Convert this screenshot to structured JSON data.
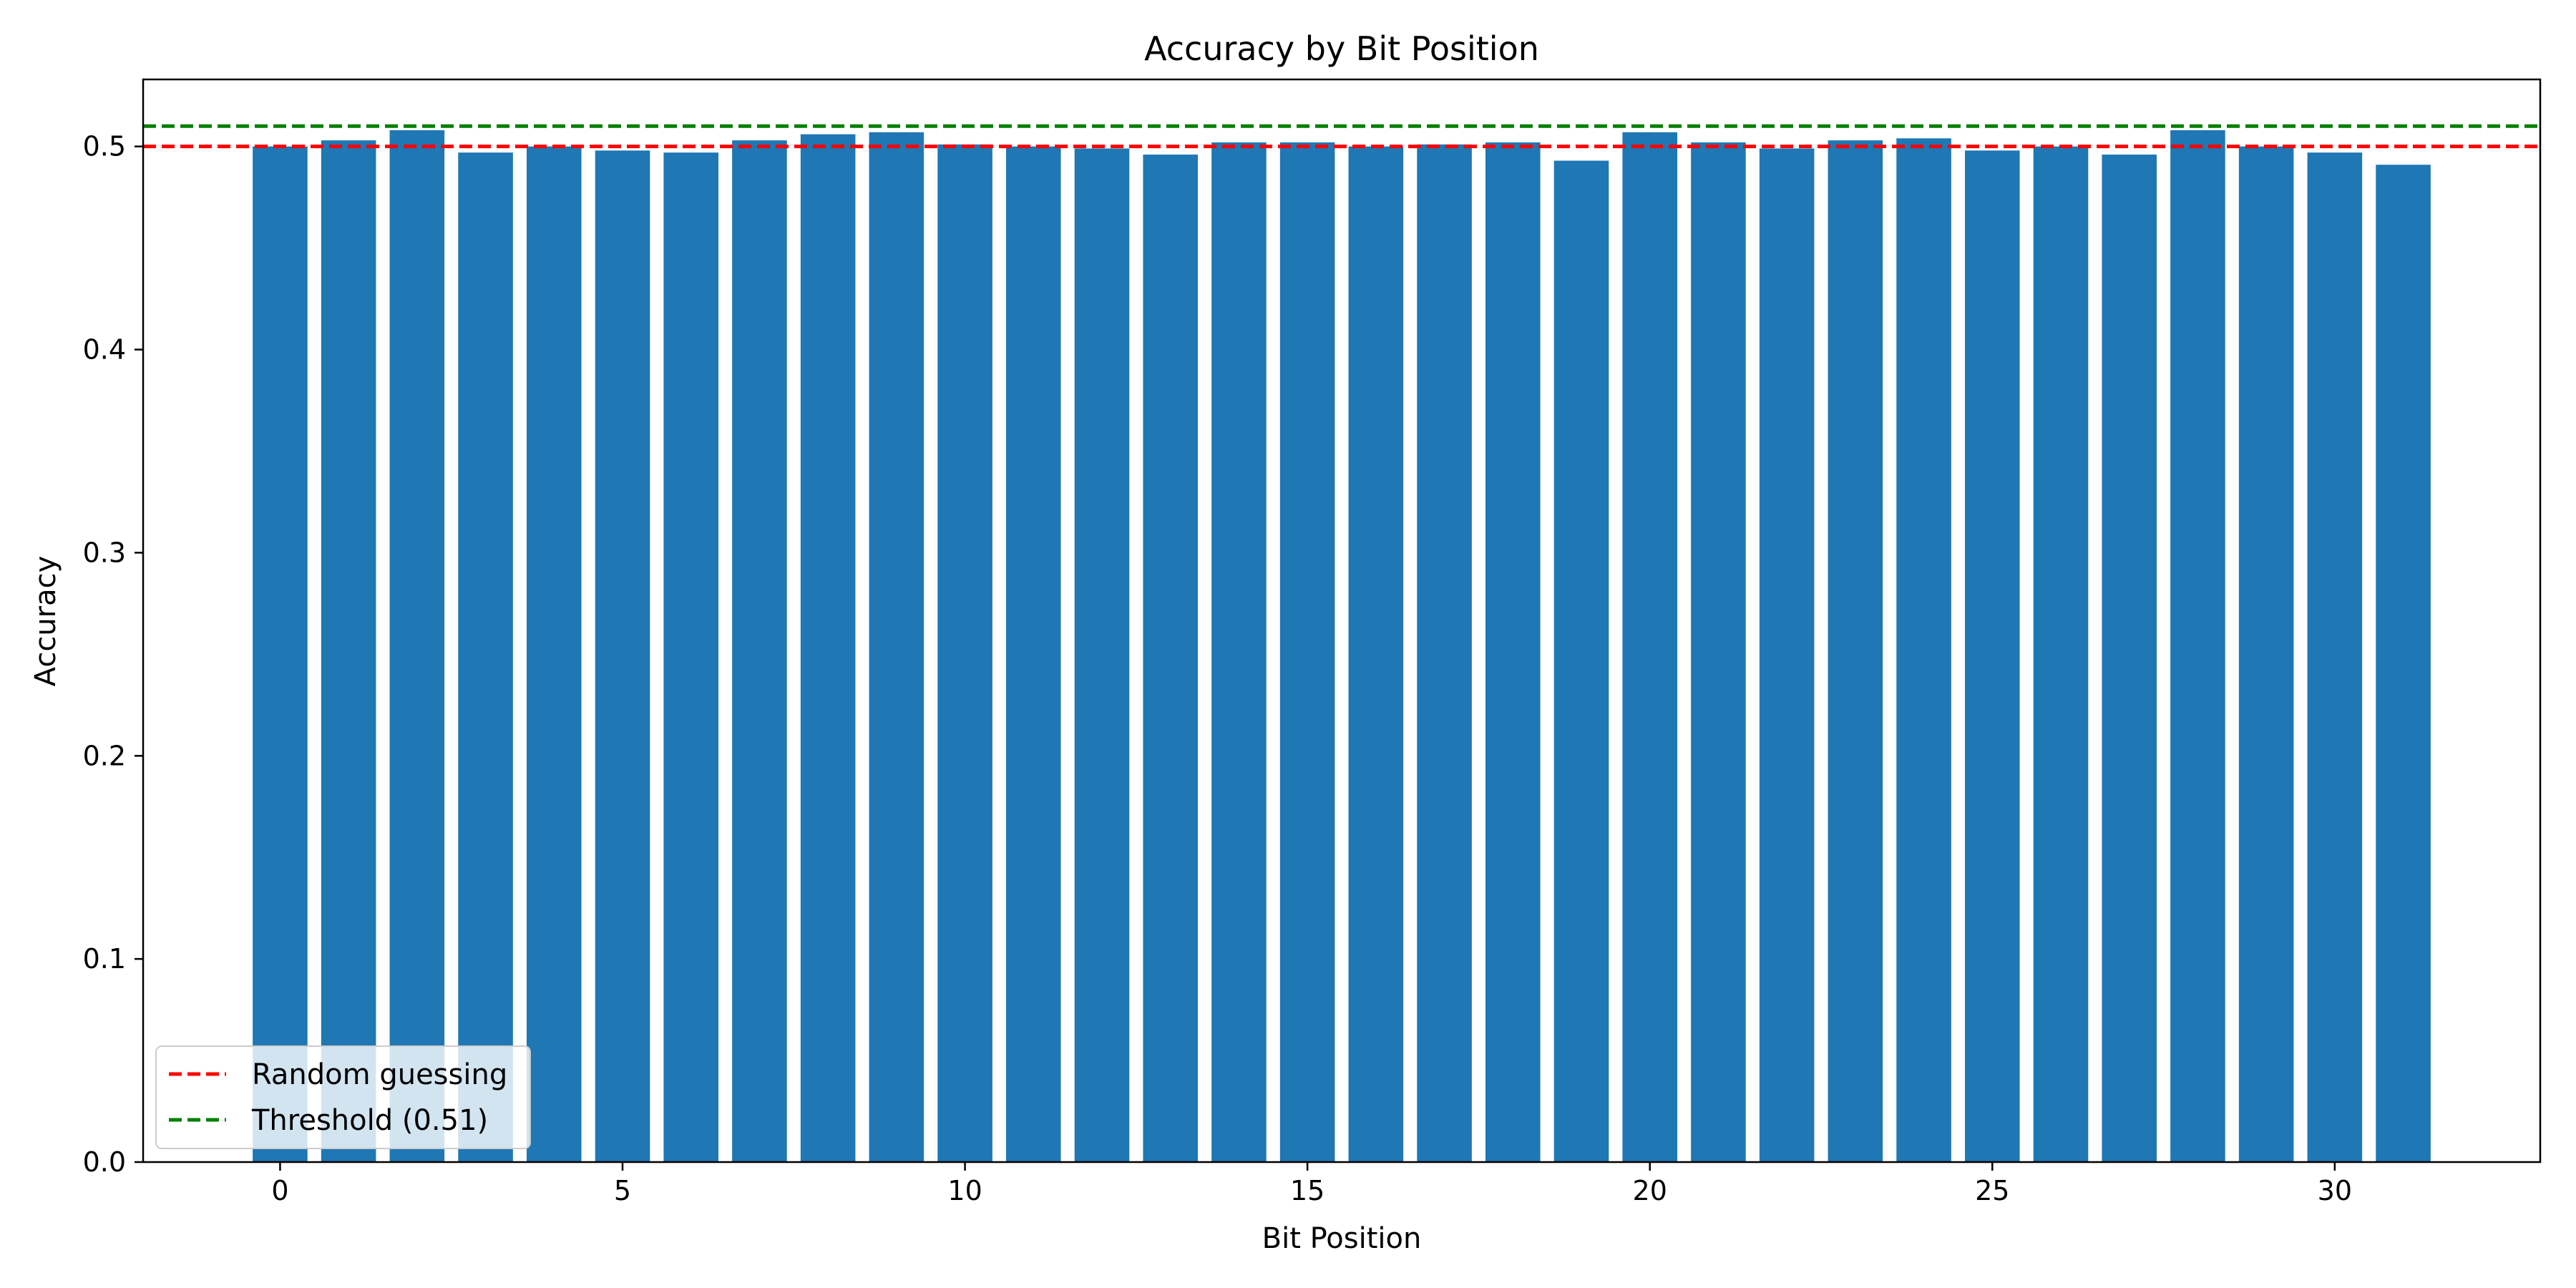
{
  "chart_data": {
    "type": "bar",
    "title": "Accuracy by Bit Position",
    "xlabel": "Bit Position",
    "ylabel": "Accuracy",
    "categories": [
      0,
      1,
      2,
      3,
      4,
      5,
      6,
      7,
      8,
      9,
      10,
      11,
      12,
      13,
      14,
      15,
      16,
      17,
      18,
      19,
      20,
      21,
      22,
      23,
      24,
      25,
      26,
      27,
      28,
      29,
      30,
      31
    ],
    "values": [
      0.5,
      0.503,
      0.508,
      0.497,
      0.5,
      0.498,
      0.497,
      0.503,
      0.506,
      0.507,
      0.501,
      0.5,
      0.499,
      0.496,
      0.502,
      0.502,
      0.5,
      0.501,
      0.502,
      0.493,
      0.507,
      0.502,
      0.499,
      0.503,
      0.504,
      0.498,
      0.5,
      0.496,
      0.508,
      0.5,
      0.497,
      0.491
    ],
    "xlim": [
      -2,
      33
    ],
    "ylim": [
      0,
      0.533
    ],
    "xticks": [
      0,
      5,
      10,
      15,
      20,
      25,
      30
    ],
    "yticks": [
      0.0,
      0.1,
      0.2,
      0.3,
      0.4,
      0.5
    ],
    "ytick_labels": [
      "0.0",
      "0.1",
      "0.2",
      "0.3",
      "0.4",
      "0.5"
    ],
    "bar_color": "#1f77b4",
    "reference_lines": [
      {
        "name": "Random guessing",
        "y": 0.5,
        "color": "#ff0000",
        "style": "dashed"
      },
      {
        "name": "Threshold (0.51)",
        "y": 0.51,
        "color": "#008000",
        "style": "dashed"
      }
    ],
    "legend": {
      "placement": "lower-left"
    },
    "grid": false
  }
}
